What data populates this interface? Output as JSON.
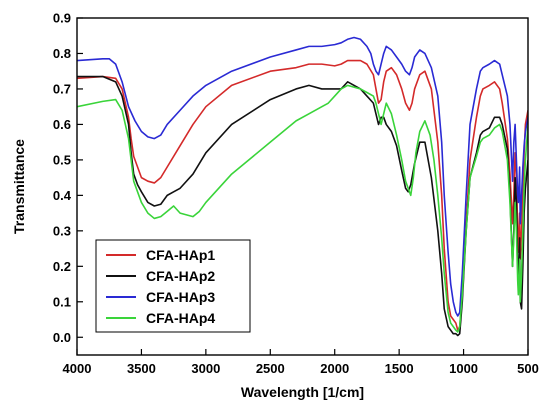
{
  "chart_data": {
    "type": "line",
    "xlabel": "Wavelength [1/cm]",
    "ylabel": "Transmittance",
    "xlim": [
      4000,
      500
    ],
    "ylim": [
      -0.05,
      0.9
    ],
    "x_ticks": [
      4000,
      3500,
      3000,
      2500,
      2000,
      1500,
      1000,
      500
    ],
    "y_ticks": [
      0.0,
      0.1,
      0.2,
      0.3,
      0.4,
      0.5,
      0.6,
      0.7,
      0.8,
      0.9
    ],
    "x_reversed": true,
    "grid": false,
    "legend_position": "bottom-left",
    "series": [
      {
        "name": "CFA-HAp1",
        "color": "#d42a2a",
        "x": [
          4000,
          3800,
          3700,
          3650,
          3600,
          3580,
          3560,
          3530,
          3500,
          3450,
          3400,
          3350,
          3300,
          3200,
          3100,
          3000,
          2800,
          2500,
          2300,
          2200,
          2100,
          2000,
          1950,
          1900,
          1800,
          1750,
          1700,
          1680,
          1660,
          1640,
          1620,
          1600,
          1560,
          1520,
          1480,
          1450,
          1420,
          1400,
          1380,
          1340,
          1300,
          1250,
          1200,
          1170,
          1150,
          1120,
          1100,
          1080,
          1060,
          1045,
          1030,
          1010,
          980,
          950,
          900,
          870,
          850,
          800,
          760,
          720,
          700,
          660,
          640,
          620,
          610,
          600,
          590,
          580,
          575,
          570,
          565,
          560,
          550,
          540,
          530,
          520,
          500
        ],
        "y": [
          0.73,
          0.735,
          0.73,
          0.7,
          0.62,
          0.56,
          0.51,
          0.48,
          0.45,
          0.44,
          0.435,
          0.45,
          0.48,
          0.54,
          0.6,
          0.65,
          0.71,
          0.75,
          0.76,
          0.77,
          0.77,
          0.765,
          0.77,
          0.78,
          0.78,
          0.77,
          0.74,
          0.7,
          0.66,
          0.67,
          0.72,
          0.75,
          0.76,
          0.74,
          0.7,
          0.66,
          0.64,
          0.66,
          0.7,
          0.74,
          0.75,
          0.7,
          0.55,
          0.4,
          0.25,
          0.1,
          0.06,
          0.05,
          0.04,
          0.02,
          0.03,
          0.12,
          0.32,
          0.5,
          0.62,
          0.68,
          0.7,
          0.71,
          0.72,
          0.7,
          0.66,
          0.56,
          0.46,
          0.32,
          0.4,
          0.52,
          0.46,
          0.3,
          0.24,
          0.28,
          0.35,
          0.22,
          0.3,
          0.42,
          0.52,
          0.6,
          0.64
        ]
      },
      {
        "name": "CFA-HAp2",
        "color": "#111111",
        "x": [
          4000,
          3800,
          3700,
          3650,
          3600,
          3580,
          3560,
          3530,
          3500,
          3450,
          3400,
          3350,
          3300,
          3250,
          3200,
          3100,
          3000,
          2800,
          2500,
          2300,
          2200,
          2100,
          2000,
          1950,
          1900,
          1800,
          1750,
          1700,
          1680,
          1660,
          1640,
          1620,
          1600,
          1560,
          1520,
          1480,
          1450,
          1430,
          1410,
          1380,
          1340,
          1300,
          1250,
          1200,
          1170,
          1150,
          1120,
          1100,
          1080,
          1060,
          1045,
          1030,
          1010,
          980,
          950,
          900,
          870,
          850,
          800,
          760,
          720,
          700,
          660,
          640,
          620,
          610,
          600,
          590,
          580,
          575,
          570,
          565,
          560,
          550,
          540,
          530,
          520,
          500
        ],
        "y": [
          0.735,
          0.735,
          0.72,
          0.68,
          0.6,
          0.52,
          0.46,
          0.43,
          0.41,
          0.38,
          0.37,
          0.375,
          0.4,
          0.41,
          0.42,
          0.46,
          0.52,
          0.6,
          0.67,
          0.7,
          0.71,
          0.7,
          0.7,
          0.7,
          0.72,
          0.7,
          0.68,
          0.66,
          0.63,
          0.6,
          0.62,
          0.62,
          0.6,
          0.58,
          0.54,
          0.47,
          0.42,
          0.41,
          0.43,
          0.49,
          0.55,
          0.55,
          0.45,
          0.3,
          0.18,
          0.08,
          0.03,
          0.02,
          0.01,
          0.01,
          0.005,
          0.01,
          0.1,
          0.3,
          0.45,
          0.52,
          0.57,
          0.58,
          0.59,
          0.62,
          0.62,
          0.6,
          0.53,
          0.4,
          0.2,
          0.3,
          0.45,
          0.38,
          0.2,
          0.14,
          0.2,
          0.28,
          0.1,
          0.08,
          0.2,
          0.35,
          0.42,
          0.5
        ]
      },
      {
        "name": "CFA-HAp3",
        "color": "#2a2ad4",
        "x": [
          4000,
          3800,
          3750,
          3700,
          3650,
          3600,
          3550,
          3500,
          3450,
          3400,
          3350,
          3300,
          3200,
          3100,
          3000,
          2800,
          2500,
          2300,
          2200,
          2100,
          2000,
          1950,
          1900,
          1850,
          1800,
          1750,
          1720,
          1700,
          1680,
          1660,
          1640,
          1620,
          1600,
          1560,
          1520,
          1480,
          1450,
          1420,
          1400,
          1380,
          1340,
          1300,
          1250,
          1200,
          1170,
          1150,
          1120,
          1100,
          1080,
          1060,
          1045,
          1030,
          1010,
          980,
          950,
          900,
          870,
          850,
          800,
          760,
          720,
          700,
          660,
          640,
          620,
          610,
          600,
          590,
          580,
          575,
          570,
          565,
          560,
          550,
          540,
          530,
          520,
          500
        ],
        "y": [
          0.78,
          0.785,
          0.785,
          0.77,
          0.72,
          0.65,
          0.61,
          0.58,
          0.565,
          0.56,
          0.57,
          0.6,
          0.64,
          0.68,
          0.71,
          0.75,
          0.79,
          0.81,
          0.82,
          0.82,
          0.825,
          0.83,
          0.84,
          0.845,
          0.84,
          0.82,
          0.8,
          0.77,
          0.75,
          0.74,
          0.77,
          0.8,
          0.82,
          0.81,
          0.79,
          0.77,
          0.75,
          0.74,
          0.76,
          0.79,
          0.81,
          0.8,
          0.76,
          0.68,
          0.55,
          0.4,
          0.24,
          0.15,
          0.1,
          0.07,
          0.06,
          0.07,
          0.18,
          0.4,
          0.6,
          0.7,
          0.75,
          0.76,
          0.77,
          0.78,
          0.77,
          0.74,
          0.68,
          0.6,
          0.44,
          0.55,
          0.6,
          0.5,
          0.4,
          0.38,
          0.42,
          0.48,
          0.32,
          0.4,
          0.48,
          0.54,
          0.58,
          0.62
        ]
      },
      {
        "name": "CFA-HAp4",
        "color": "#3ad43a",
        "x": [
          4000,
          3800,
          3700,
          3650,
          3600,
          3580,
          3560,
          3530,
          3500,
          3450,
          3400,
          3350,
          3300,
          3250,
          3200,
          3150,
          3100,
          3050,
          3000,
          2800,
          2500,
          2300,
          2200,
          2100,
          2050,
          2000,
          1950,
          1900,
          1800,
          1750,
          1700,
          1680,
          1660,
          1640,
          1620,
          1600,
          1560,
          1520,
          1480,
          1450,
          1430,
          1410,
          1390,
          1370,
          1340,
          1300,
          1260,
          1230,
          1200,
          1170,
          1150,
          1120,
          1100,
          1080,
          1060,
          1045,
          1030,
          1010,
          980,
          950,
          900,
          870,
          850,
          800,
          760,
          720,
          700,
          660,
          640,
          620,
          610,
          600,
          590,
          580,
          575,
          570,
          565,
          560,
          550,
          540,
          530,
          520,
          500
        ],
        "y": [
          0.65,
          0.665,
          0.67,
          0.64,
          0.56,
          0.5,
          0.44,
          0.41,
          0.38,
          0.35,
          0.335,
          0.34,
          0.355,
          0.37,
          0.35,
          0.345,
          0.34,
          0.355,
          0.38,
          0.46,
          0.55,
          0.61,
          0.63,
          0.65,
          0.66,
          0.68,
          0.7,
          0.71,
          0.7,
          0.69,
          0.68,
          0.66,
          0.63,
          0.6,
          0.63,
          0.66,
          0.63,
          0.57,
          0.5,
          0.44,
          0.42,
          0.4,
          0.45,
          0.52,
          0.58,
          0.61,
          0.57,
          0.5,
          0.4,
          0.28,
          0.18,
          0.07,
          0.04,
          0.03,
          0.02,
          0.015,
          0.03,
          0.12,
          0.3,
          0.45,
          0.51,
          0.55,
          0.56,
          0.57,
          0.59,
          0.6,
          0.58,
          0.5,
          0.38,
          0.2,
          0.28,
          0.38,
          0.3,
          0.16,
          0.12,
          0.16,
          0.22,
          0.1,
          0.18,
          0.3,
          0.42,
          0.5,
          0.6
        ]
      }
    ]
  }
}
